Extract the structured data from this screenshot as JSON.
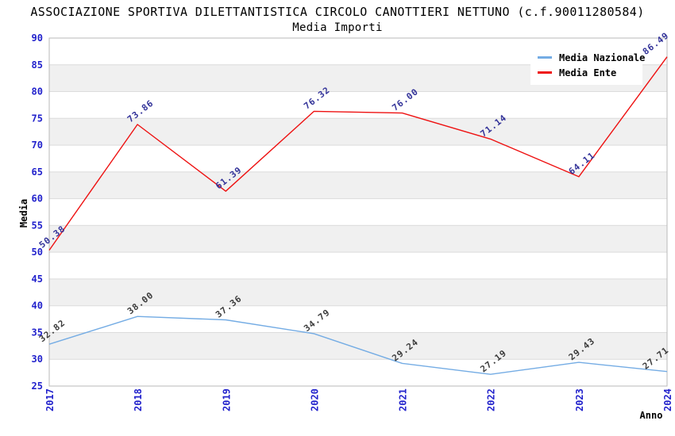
{
  "chart_data": {
    "type": "line",
    "title": "ASSOCIAZIONE SPORTIVA DILETTANTISTICA CIRCOLO CANOTTIERI NETTUNO (c.f.90011280584)",
    "subtitle": "Media Importi",
    "xlabel": "Anno",
    "ylabel": "Media",
    "categories": [
      "2017",
      "2018",
      "2019",
      "2020",
      "2021",
      "2022",
      "2023",
      "2024"
    ],
    "ylim": [
      25,
      90
    ],
    "ytick_step": 5,
    "grid": "horizontal",
    "alternating_bands": true,
    "legend_position": "top-right",
    "series": [
      {
        "name": "Media Nazionale",
        "color": "#74ACE4",
        "label_color": "#3C3C3C",
        "values": [
          32.82,
          38.0,
          37.36,
          34.79,
          29.24,
          27.19,
          29.43,
          27.71
        ]
      },
      {
        "name": "Media Ente",
        "color": "#EE1111",
        "label_color": "#333399",
        "values": [
          50.38,
          73.86,
          61.39,
          76.32,
          76.0,
          71.14,
          64.11,
          86.49
        ]
      }
    ],
    "colors": {
      "tick_label": "#2222CC",
      "band": "#F0F0F0",
      "gridline": "#DCDCDC",
      "plot_border": "#B8B8B8",
      "legend_bg": "#FFFFFF"
    }
  }
}
